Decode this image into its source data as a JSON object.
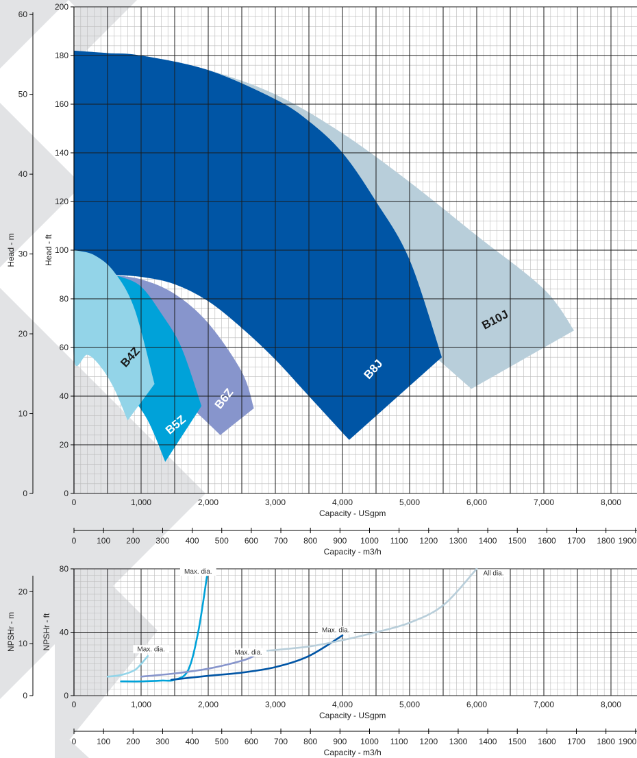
{
  "colors": {
    "B4Z": "#93d4e8",
    "B5Z": "#00a2d9",
    "B6Z": "#8795cc",
    "B8J": "#0055a5",
    "B10J": "#b8ceda",
    "watermark": "#e2e3e5",
    "grid_minor": "#bbbbbb",
    "grid_major": "#1a1a1a"
  },
  "chart_data": [
    {
      "type": "area",
      "xlabel": "Capacity - USgpm",
      "ylabel": "Head - ft",
      "ylabel_secondary": "Head - m",
      "xlabel_secondary": "Capacity - m3/h",
      "xlim": [
        0,
        8500
      ],
      "ylim": [
        0,
        200
      ],
      "ylim_secondary": [
        0,
        61
      ],
      "x_ticks": [
        "0",
        "1,000",
        "2,000",
        "3,000",
        "4,000",
        "5,000",
        "6,000",
        "7,000",
        "8,000"
      ],
      "y_ticks": [
        "0",
        "20",
        "40",
        "60",
        "80",
        "100",
        "120",
        "140",
        "160",
        "180",
        "200"
      ],
      "y_ticks_secondary": [
        "0",
        "10",
        "20",
        "30",
        "40",
        "50",
        "60"
      ],
      "x_ticks_secondary": [
        "0",
        "100",
        "200",
        "300",
        "400",
        "500",
        "600",
        "700",
        "800",
        "900",
        "1000",
        "1100",
        "1200",
        "1300",
        "1400",
        "1500",
        "1600",
        "1700",
        "1800",
        "1900"
      ],
      "grid": true,
      "series": [
        {
          "name": "B10J",
          "top": [
            [
              0,
              182
            ],
            [
              500,
              181
            ],
            [
              1000,
              180
            ],
            [
              2000,
              174
            ],
            [
              3000,
              164
            ],
            [
              4000,
              148
            ],
            [
              5000,
              128
            ],
            [
              6000,
              106
            ],
            [
              7000,
              84
            ],
            [
              7450,
              67
            ]
          ],
          "bottom": [
            [
              5920,
              43
            ],
            [
              5300,
              58
            ],
            [
              4700,
              72
            ],
            [
              4000,
              86
            ],
            [
              3000,
              100
            ],
            [
              2000,
              107
            ],
            [
              1000,
              110
            ]
          ]
        },
        {
          "name": "B8J",
          "top": [
            [
              0,
              182
            ],
            [
              500,
              181
            ],
            [
              1000,
              180
            ],
            [
              2000,
              174
            ],
            [
              3000,
              162
            ],
            [
              3500,
              153
            ],
            [
              4000,
              140
            ],
            [
              4500,
              120
            ],
            [
              5000,
              96
            ],
            [
              5480,
              56
            ]
          ],
          "bottom": [
            [
              4100,
              22
            ],
            [
              3500,
              40
            ],
            [
              3000,
              55
            ],
            [
              2500,
              68
            ],
            [
              2000,
              79
            ],
            [
              1500,
              86
            ],
            [
              1000,
              89
            ],
            [
              500,
              90
            ]
          ]
        },
        {
          "name": "B6Z",
          "top": [
            [
              500,
              90
            ],
            [
              1000,
              88
            ],
            [
              1500,
              82
            ],
            [
              2000,
              70
            ],
            [
              2500,
              50
            ],
            [
              2680,
              35
            ]
          ],
          "bottom": [
            [
              2180,
              24
            ],
            [
              1800,
              34
            ],
            [
              1400,
              44
            ],
            [
              1000,
              52
            ],
            [
              700,
              56
            ]
          ]
        },
        {
          "name": "B5Z",
          "top": [
            [
              500,
              90
            ],
            [
              700,
              89
            ],
            [
              1000,
              85
            ],
            [
              1300,
              74
            ],
            [
              1600,
              60
            ],
            [
              1900,
              36
            ]
          ],
          "bottom": [
            [
              1360,
              13
            ],
            [
              1100,
              30
            ],
            [
              800,
              42
            ],
            [
              600,
              50
            ]
          ]
        },
        {
          "name": "B4Z",
          "top": [
            [
              0,
              100
            ],
            [
              300,
              98
            ],
            [
              600,
              91
            ],
            [
              900,
              76
            ],
            [
              1200,
              45
            ]
          ],
          "bottom": [
            [
              800,
              30
            ],
            [
              600,
              43
            ],
            [
              400,
              52
            ],
            [
              200,
              57
            ],
            [
              0,
              55
            ],
            [
              0,
              100
            ]
          ]
        }
      ]
    },
    {
      "type": "line",
      "xlabel": "Capacity - USgpm",
      "ylabel": "NPSHr - ft",
      "ylabel_secondary": "NPSHr - m",
      "xlabel_secondary": "Capacity - m3/h",
      "xlim": [
        0,
        8500
      ],
      "ylim": [
        0,
        80
      ],
      "ylim_secondary": [
        0,
        24.4
      ],
      "x_ticks": [
        "0",
        "1,000",
        "2,000",
        "3,000",
        "4,000",
        "5,000",
        "6,000",
        "7,000",
        "8,000"
      ],
      "y_ticks": [
        "0",
        "40",
        "80"
      ],
      "y_ticks_secondary": [
        "0",
        "10",
        "20"
      ],
      "x_ticks_secondary": [
        "0",
        "100",
        "200",
        "300",
        "400",
        "500",
        "600",
        "700",
        "800",
        "900",
        "1000",
        "1100",
        "1200",
        "1300",
        "1400",
        "1500",
        "1600",
        "1700",
        "1800",
        "1900"
      ],
      "grid": true,
      "annotations": [
        "Max. dia.",
        "Max. dia.",
        "Max. dia.",
        "Max. dia.",
        "All dia."
      ],
      "series": [
        {
          "name": "B4Z",
          "x": [
            500,
            700,
            900,
            1000,
            1100
          ],
          "y": [
            12,
            13,
            16,
            20,
            25
          ]
        },
        {
          "name": "B5Z",
          "x": [
            700,
            1000,
            1300,
            1500,
            1700,
            1850,
            1980
          ],
          "y": [
            9,
            9,
            9.5,
            10,
            16,
            40,
            75
          ]
        },
        {
          "name": "B6Z",
          "x": [
            1000,
            1500,
            2000,
            2500,
            2680
          ],
          "y": [
            12,
            14,
            17,
            22,
            25
          ]
        },
        {
          "name": "B8J",
          "x": [
            1450,
            2000,
            2500,
            3000,
            3500,
            4000
          ],
          "y": [
            10,
            12.5,
            14.5,
            18,
            25,
            38
          ]
        },
        {
          "name": "B10J",
          "x": [
            2800,
            3500,
            4000,
            4500,
            5000,
            5500,
            6000
          ],
          "y": [
            28,
            31,
            35,
            40,
            46,
            57,
            80
          ]
        }
      ]
    }
  ]
}
